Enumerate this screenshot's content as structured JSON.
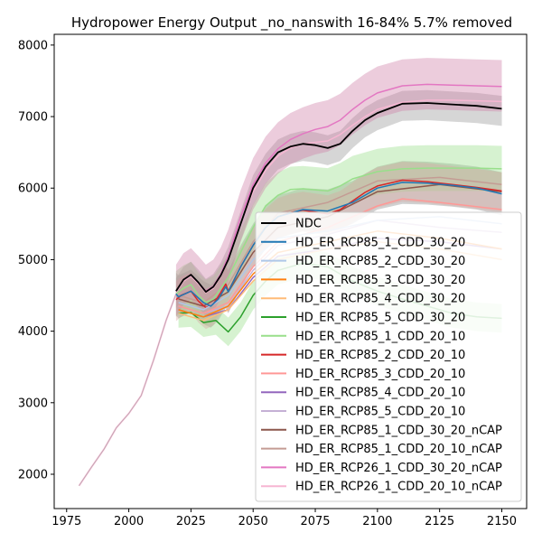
{
  "chart_data": {
    "type": "line",
    "title": "Hydropower Energy Output _no_nanswith 16-84% 5.7% removed",
    "xlabel": "",
    "ylabel": "",
    "xlim": [
      1970,
      2160
    ],
    "ylim": [
      1520,
      8150
    ],
    "xticks": [
      1975,
      2000,
      2025,
      2050,
      2075,
      2100,
      2125,
      2150
    ],
    "yticks": [
      2000,
      3000,
      4000,
      5000,
      6000,
      7000,
      8000
    ],
    "legend_position": "lower right",
    "grid": false,
    "history": {
      "x": [
        1980,
        1985,
        1990,
        1995,
        2000,
        2005,
        2010,
        2015,
        2019
      ],
      "y": [
        1840,
        2100,
        2350,
        2650,
        2850,
        3100,
        3600,
        4150,
        4520
      ]
    },
    "series": [
      {
        "name": "NDC",
        "color": "#000000",
        "x": [
          2019,
          2022,
          2025,
          2028,
          2031,
          2034,
          2037,
          2040,
          2045,
          2050,
          2055,
          2060,
          2065,
          2070,
          2075,
          2080,
          2085,
          2090,
          2095,
          2100,
          2110,
          2120,
          2130,
          2140,
          2150
        ],
        "y": [
          4560,
          4720,
          4790,
          4680,
          4550,
          4620,
          4780,
          5000,
          5500,
          6000,
          6300,
          6500,
          6580,
          6620,
          6600,
          6560,
          6620,
          6800,
          6950,
          7050,
          7180,
          7190,
          7170,
          7150,
          7110
        ],
        "band_lower_offset": 240,
        "band_upper_offset": 180,
        "band_color": "#999999"
      },
      {
        "name": "HD_ER_RCP85_1_CDD_30_20",
        "color": "#1f77b4",
        "x": [
          2019,
          2020,
          2025,
          2030,
          2033,
          2036,
          2039,
          2040,
          2045,
          2050,
          2055,
          2060,
          2070,
          2080,
          2090,
          2100,
          2110,
          2120,
          2130,
          2140,
          2150
        ],
        "y": [
          4520,
          4480,
          4560,
          4400,
          4350,
          4450,
          4620,
          4550,
          4900,
          5200,
          5450,
          5600,
          5700,
          5680,
          5800,
          6000,
          6080,
          6070,
          6040,
          6000,
          5920
        ],
        "band_lower_offset": 300,
        "band_upper_offset": 300,
        "band_color": "#8c8c8c"
      },
      {
        "name": "HD_ER_RCP85_2_CDD_30_20",
        "color": "#aec7e8",
        "x": [
          2020,
          2030,
          2040,
          2050,
          2060,
          2080,
          2100,
          2125,
          2150
        ],
        "y": [
          4400,
          4300,
          4500,
          5000,
          5300,
          5400,
          5550,
          5600,
          5500
        ],
        "band_color": null
      },
      {
        "name": "HD_ER_RCP85_3_CDD_30_20",
        "color": "#ff7f0e",
        "x": [
          2020,
          2030,
          2040,
          2050,
          2060,
          2080,
          2100,
          2125,
          2150
        ],
        "y": [
          4300,
          4200,
          4350,
          4800,
          5100,
          5250,
          5400,
          5300,
          5150
        ],
        "band_color": null
      },
      {
        "name": "HD_ER_RCP85_4_CDD_30_20",
        "color": "#ffbb78",
        "x": [
          2020,
          2030,
          2040,
          2050,
          2060,
          2080,
          2100,
          2125,
          2150
        ],
        "y": [
          4250,
          4150,
          4300,
          4700,
          5000,
          5150,
          5250,
          5150,
          5000
        ],
        "band_color": null
      },
      {
        "name": "HD_ER_RCP85_5_CDD_30_20",
        "color": "#2ca02c",
        "x": [
          2020,
          2025,
          2030,
          2035,
          2040,
          2045,
          2050,
          2055,
          2060,
          2070,
          2080,
          2090,
          2100,
          2110,
          2120,
          2130,
          2140,
          2150
        ],
        "y": [
          4250,
          4260,
          4120,
          4150,
          3990,
          4200,
          4500,
          4700,
          4850,
          4950,
          4900,
          4700,
          4560,
          4450,
          4350,
          4250,
          4200,
          4180
        ],
        "band_lower_offset": 200,
        "band_upper_offset": 200,
        "band_color": "#98df8a"
      },
      {
        "name": "HD_ER_RCP85_1_CDD_20_10",
        "color": "#98df8a",
        "x": [
          2019,
          2022,
          2025,
          2028,
          2031,
          2034,
          2037,
          2040,
          2045,
          2050,
          2055,
          2060,
          2065,
          2070,
          2080,
          2085,
          2090,
          2100,
          2110,
          2120,
          2130,
          2140,
          2150
        ],
        "y": [
          4520,
          4600,
          4650,
          4500,
          4400,
          4450,
          4600,
          4750,
          5100,
          5450,
          5750,
          5900,
          5980,
          5990,
          5960,
          6030,
          6130,
          6230,
          6270,
          6280,
          6280,
          6280,
          6270
        ],
        "band_lower_offset": 320,
        "band_upper_offset": 320,
        "band_color": "#98df8a"
      },
      {
        "name": "HD_ER_RCP85_2_CDD_20_10",
        "color": "#d62728",
        "x": [
          2019,
          2021,
          2025,
          2028,
          2031,
          2034,
          2037,
          2039,
          2040,
          2045,
          2050,
          2055,
          2060,
          2065,
          2070,
          2080,
          2085,
          2090,
          2095,
          2100,
          2110,
          2120,
          2130,
          2140,
          2150
        ],
        "y": [
          4440,
          4500,
          4560,
          4420,
          4330,
          4380,
          4540,
          4660,
          4560,
          4900,
          5200,
          5450,
          5600,
          5660,
          5690,
          5640,
          5700,
          5820,
          5940,
          6030,
          6110,
          6090,
          6050,
          6010,
          5960
        ],
        "band_lower_offset": 300,
        "band_upper_offset": 260,
        "band_color": "#d9a7a0"
      },
      {
        "name": "HD_ER_RCP85_3_CDD_20_10",
        "color": "#ff9896",
        "x": [
          2020,
          2030,
          2040,
          2050,
          2060,
          2080,
          2100,
          2110,
          2125,
          2150
        ],
        "y": [
          4350,
          4250,
          4400,
          4900,
          5250,
          5450,
          5750,
          5850,
          5800,
          5700
        ],
        "band_color": null
      },
      {
        "name": "HD_ER_RCP85_4_CDD_20_10",
        "color": "#9467bd",
        "x": [
          2020,
          2030,
          2040,
          2050,
          2060,
          2080,
          2100,
          2125,
          2150
        ],
        "y": [
          4300,
          4200,
          4300,
          4750,
          5050,
          5150,
          5300,
          5250,
          5150
        ],
        "band_color": null
      },
      {
        "name": "HD_ER_RCP85_5_CDD_20_10",
        "color": "#c5b0d5",
        "x": [
          2020,
          2030,
          2040,
          2050,
          2060,
          2080,
          2100,
          2125,
          2150
        ],
        "y": [
          4350,
          4250,
          4350,
          4850,
          5200,
          5350,
          5550,
          5450,
          5380
        ],
        "band_color": null
      },
      {
        "name": "HD_ER_RCP85_1_CDD_30_20_nCAP",
        "color": "#8c564b",
        "x": [
          2020,
          2030,
          2040,
          2050,
          2060,
          2080,
          2100,
          2125,
          2150
        ],
        "y": [
          4450,
          4350,
          4550,
          5100,
          5450,
          5600,
          5950,
          6050,
          5950
        ],
        "band_color": null
      },
      {
        "name": "HD_ER_RCP85_1_CDD_20_10_nCAP",
        "color": "#c49c94",
        "x": [
          2020,
          2030,
          2040,
          2050,
          2060,
          2080,
          2100,
          2125,
          2150
        ],
        "y": [
          4500,
          4400,
          4650,
          5250,
          5650,
          5800,
          6100,
          6150,
          6050
        ],
        "band_color": null
      },
      {
        "name": "HD_ER_RCP26_1_CDD_30_20_nCAP",
        "color": "#e377c2",
        "x": [
          2019,
          2022,
          2025,
          2028,
          2031,
          2034,
          2037,
          2040,
          2045,
          2050,
          2055,
          2060,
          2065,
          2070,
          2075,
          2080,
          2085,
          2090,
          2095,
          2100,
          2110,
          2120,
          2130,
          2140,
          2150
        ],
        "y": [
          4560,
          4720,
          4790,
          4680,
          4560,
          4630,
          4800,
          5050,
          5600,
          6050,
          6350,
          6550,
          6680,
          6760,
          6820,
          6860,
          6950,
          7100,
          7230,
          7330,
          7430,
          7450,
          7440,
          7430,
          7420
        ],
        "band_lower_offset": 350,
        "band_upper_offset": 370,
        "band_color": "#d080a8"
      },
      {
        "name": "HD_ER_RCP26_1_CDD_20_10_nCAP",
        "color": "#f7b6d2",
        "x": [
          2019,
          2022,
          2025,
          2028,
          2031,
          2034,
          2037,
          2040,
          2045,
          2050,
          2055,
          2060,
          2065,
          2070,
          2075,
          2080,
          2085,
          2090,
          2095,
          2100,
          2110,
          2120,
          2130,
          2140,
          2150
        ],
        "y": [
          4540,
          4700,
          4770,
          4660,
          4540,
          4600,
          4770,
          5000,
          5500,
          5950,
          6250,
          6450,
          6560,
          6620,
          6640,
          6660,
          6750,
          6880,
          7000,
          7100,
          7200,
          7230,
          7230,
          7220,
          7210
        ],
        "band_color": null
      }
    ]
  }
}
